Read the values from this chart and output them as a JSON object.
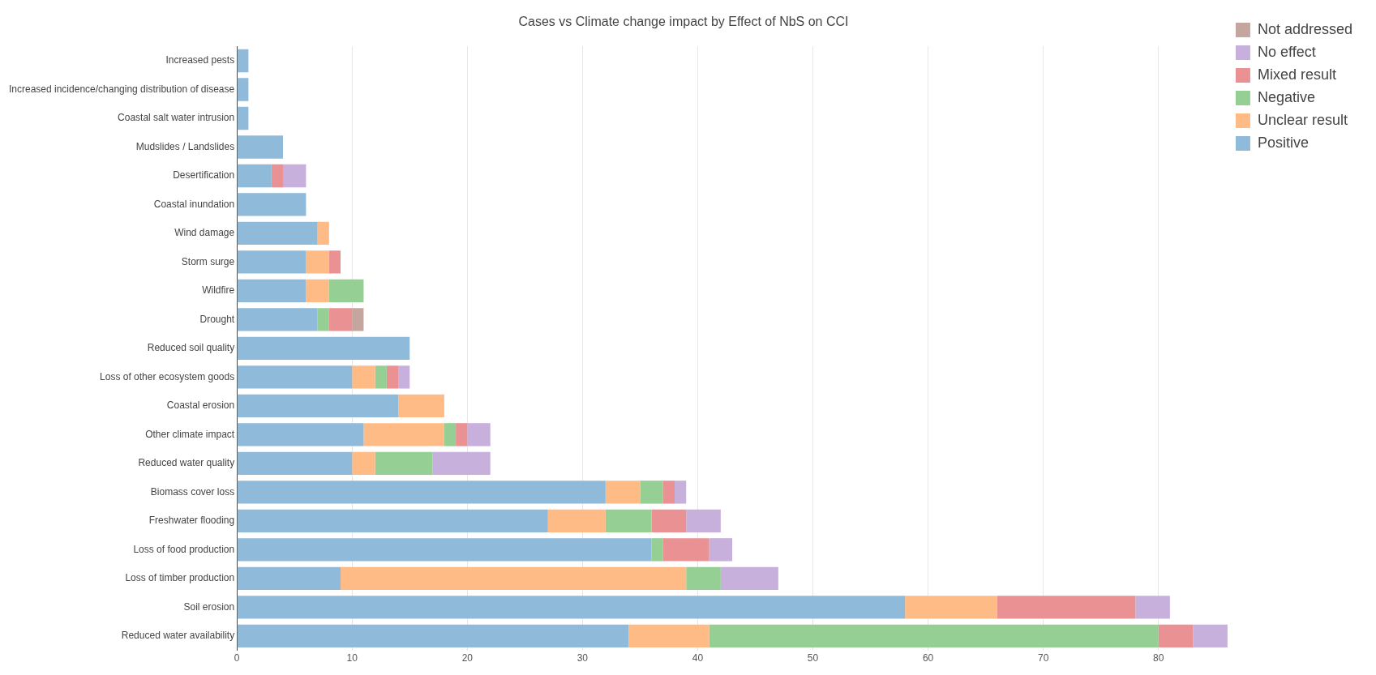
{
  "chart_data": {
    "type": "bar",
    "orientation": "horizontal",
    "stacked": true,
    "title": "Cases vs Climate change impact by Effect of NbS on CCI",
    "categories": [
      "Increased pests",
      "Increased incidence/changing distribution of disease",
      "Coastal salt water intrusion",
      "Mudslides / Landslides",
      "Desertification",
      "Coastal inundation",
      "Wind damage",
      "Storm surge",
      "Wildfire",
      "Drought",
      "Reduced soil quality",
      "Loss of other ecosystem goods",
      "Coastal erosion",
      "Other climate impact",
      "Reduced water quality",
      "Biomass cover loss",
      "Freshwater flooding",
      "Loss of food production",
      "Loss of timber production",
      "Soil erosion",
      "Reduced water availability"
    ],
    "series": [
      {
        "name": "Positive",
        "color": "#8fbad9",
        "values": [
          1,
          1,
          1,
          4,
          3,
          6,
          7,
          6,
          6,
          7,
          15,
          10,
          14,
          11,
          10,
          32,
          27,
          36,
          9,
          58,
          34
        ]
      },
      {
        "name": "Unclear result",
        "color": "#ffbb86",
        "values": [
          null,
          null,
          null,
          null,
          null,
          null,
          1,
          2,
          2,
          null,
          null,
          2,
          4,
          7,
          2,
          3,
          5,
          null,
          30,
          8,
          7
        ]
      },
      {
        "name": "Negative",
        "color": "#95cf93",
        "values": [
          null,
          null,
          null,
          null,
          null,
          null,
          null,
          null,
          3,
          1,
          null,
          1,
          null,
          1,
          5,
          2,
          4,
          1,
          3,
          null,
          39
        ]
      },
      {
        "name": "Mixed result",
        "color": "#e99193",
        "values": [
          null,
          null,
          null,
          null,
          1,
          null,
          null,
          1,
          null,
          2,
          null,
          1,
          null,
          1,
          null,
          1,
          3,
          4,
          null,
          12,
          3
        ]
      },
      {
        "name": "No effect",
        "color": "#c8b0dc",
        "values": [
          null,
          null,
          null,
          null,
          2,
          null,
          null,
          null,
          null,
          null,
          null,
          1,
          null,
          2,
          5,
          1,
          3,
          2,
          5,
          3,
          3
        ]
      },
      {
        "name": "Not addressed",
        "color": "#c4a69f",
        "values": [
          null,
          null,
          null,
          null,
          null,
          null,
          null,
          null,
          null,
          1,
          null,
          null,
          null,
          null,
          null,
          null,
          null,
          null,
          null,
          null,
          null
        ]
      }
    ],
    "xlim": [
      0,
      86
    ],
    "xticks": [
      0,
      10,
      20,
      30,
      40,
      50,
      60,
      70,
      80
    ],
    "grid": "x",
    "legend": "top right"
  }
}
